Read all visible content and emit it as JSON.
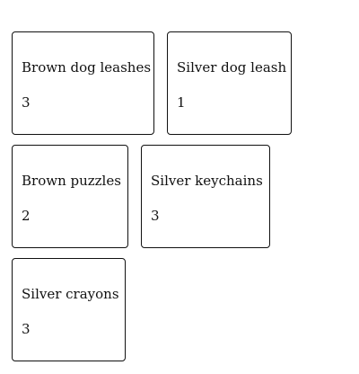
{
  "cards": [
    {
      "name": "Brown dog leashes",
      "count": "3"
    },
    {
      "name": "Silver dog leash",
      "count": "1"
    },
    {
      "name": "Brown puzzles",
      "count": "2"
    },
    {
      "name": "Silver keychains",
      "count": "3"
    },
    {
      "name": "Silver crayons",
      "count": "3"
    }
  ]
}
